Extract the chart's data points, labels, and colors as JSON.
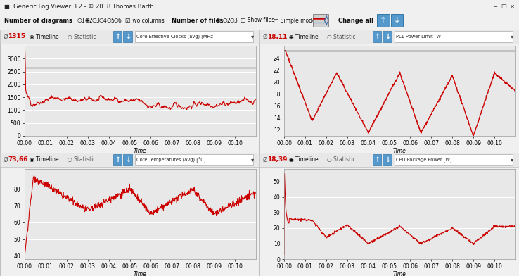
{
  "title_bar": "Generic Log Viewer 3.2 - © 2018 Thomas Barth",
  "bg_color": "#f0f0f0",
  "plot_bg_color": "#e8e8e8",
  "title_bar_bg": "#c8c8c8",
  "charts": [
    {
      "avg_label": "1315",
      "avg_color": "#cc0000",
      "ylabel_text": "Core Effective Clocks (avg) [MHz]",
      "ylim": [
        0,
        3500
      ],
      "yticks": [
        0,
        500,
        1000,
        1500,
        2000,
        2500,
        3000
      ],
      "has_hline": true,
      "hline_y": 2650,
      "hline_color": "#555555",
      "line_color": "#cc0000",
      "line_width": 0.8
    },
    {
      "avg_label": "18,11",
      "avg_color": "#cc0000",
      "ylabel_text": "PL1 Power Limit [W]",
      "ylim": [
        11,
        26
      ],
      "yticks": [
        12,
        14,
        16,
        18,
        20,
        22,
        24
      ],
      "has_hline": true,
      "hline_y": 25.2,
      "hline_color": "#222222",
      "line_color": "#cc0000",
      "line_width": 1.0
    },
    {
      "avg_label": "73,66",
      "avg_color": "#cc0000",
      "ylabel_text": "Core Temperatures (avg) [°C]",
      "ylim": [
        38,
        92
      ],
      "yticks": [
        40,
        50,
        60,
        70,
        80
      ],
      "has_hline": false,
      "hline_y": null,
      "hline_color": null,
      "line_color": "#cc0000",
      "line_width": 0.8
    },
    {
      "avg_label": "18,39",
      "avg_color": "#cc0000",
      "ylabel_text": "CPU Package Power [W]",
      "ylim": [
        0,
        58
      ],
      "yticks": [
        0,
        10,
        20,
        30,
        40,
        50
      ],
      "has_hline": false,
      "hline_y": null,
      "hline_color": null,
      "line_color": "#cc0000",
      "line_width": 0.8
    }
  ],
  "xlabel": "Time",
  "xtick_labels": [
    "00:00",
    "00:01",
    "00:02",
    "00:03",
    "00:04",
    "00:05",
    "00:06",
    "00:07",
    "00:08",
    "00:09",
    "00:10"
  ],
  "xtick_positions": [
    0,
    60,
    120,
    180,
    240,
    300,
    360,
    420,
    480,
    540,
    600
  ]
}
